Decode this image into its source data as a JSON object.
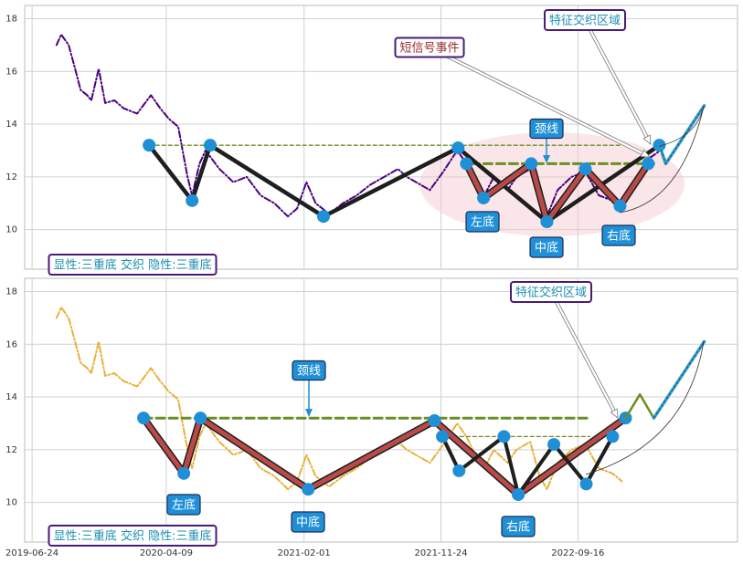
{
  "chart_data": [
    {
      "type": "line",
      "xlim": [
        "2019-06-08",
        "2023-08-27"
      ],
      "ylim": [
        8.5,
        18.5
      ],
      "yticks": [
        10,
        12,
        14,
        16,
        18
      ],
      "grid": true,
      "series": [
        {
          "color": "#4b0082",
          "line_style": "dashdot",
          "line_width": 2,
          "x": [
            "2019-08-16",
            "2019-08-26",
            "2019-09-11",
            "2019-09-25",
            "2019-10-07",
            "2019-10-21",
            "2019-10-30",
            "2019-11-15",
            "2019-11-29",
            "2019-12-19",
            "2020-01-08",
            "2020-02-06",
            "2020-03-07",
            "2020-03-27",
            "2020-04-15",
            "2020-05-05",
            "2020-05-25",
            "2020-06-04",
            "2020-06-20",
            "2020-07-03",
            "2020-08-02",
            "2020-09-01",
            "2020-09-30",
            "2020-10-30",
            "2020-11-29",
            "2020-12-28",
            "2021-01-17",
            "2021-02-06",
            "2021-02-26",
            "2021-03-27",
            "2021-04-26",
            "2021-05-26",
            "2021-06-24",
            "2021-07-24",
            "2021-08-23",
            "2021-09-11",
            "2021-10-01",
            "2021-10-31",
            "2021-11-29",
            "2021-12-29",
            "2022-01-18",
            "2022-02-06",
            "2022-02-26",
            "2022-03-18",
            "2022-04-17",
            "2022-05-06",
            "2022-06-05",
            "2022-06-25",
            "2022-07-11",
            "2022-08-03",
            "2022-09-02",
            "2022-10-02",
            "2022-10-31",
            "2022-11-30",
            "2022-12-20",
            "2023-01-18",
            "2023-02-17",
            "2023-03-13"
          ],
          "values": [
            17.0,
            17.4,
            17.0,
            16.1,
            15.3,
            15.1,
            14.9,
            16.1,
            14.8,
            14.9,
            14.6,
            14.4,
            15.1,
            14.6,
            14.2,
            13.9,
            12.0,
            11.3,
            12.5,
            13.0,
            12.3,
            11.8,
            12.0,
            11.3,
            11.0,
            10.5,
            10.8,
            11.8,
            11.0,
            10.6,
            11.0,
            11.3,
            11.7,
            12.0,
            12.3,
            12.0,
            11.8,
            11.5,
            12.2,
            13.0,
            12.5,
            11.8,
            11.3,
            12.0,
            11.5,
            12.0,
            12.3,
            11.0,
            10.5,
            11.5,
            12.0,
            12.2,
            11.3,
            11.1,
            10.8,
            11.8,
            12.7,
            13.0
          ]
        },
        {
          "color": "#6b8e23",
          "line_style": "dashed",
          "line_width": 1.3,
          "x": [
            "2020-03-03",
            "2022-12-20"
          ],
          "values": [
            13.2,
            13.2
          ]
        },
        {
          "color": "#6b8e23",
          "line_style": "dashed",
          "line_width": 3,
          "x": [
            "2022-01-28",
            "2023-02-27"
          ],
          "values": [
            12.5,
            12.5
          ]
        },
        {
          "color": "#1e1e1e",
          "line_width": 4.5,
          "marker": "#1f8fd6",
          "x": [
            "2020-03-03",
            "2020-06-04",
            "2020-07-13",
            "2021-03-15",
            "2021-12-31",
            "2022-07-11",
            "2023-03-11"
          ],
          "values": [
            13.2,
            11.1,
            13.2,
            10.5,
            13.1,
            10.3,
            13.2
          ]
        },
        {
          "color": "#b94a48",
          "edge": "#1e1e1e",
          "line_width": 5,
          "marker": "#1f8fd6",
          "x": [
            "2022-01-18",
            "2022-02-24",
            "2022-06-07",
            "2022-07-11",
            "2022-10-02",
            "2022-12-16",
            "2023-02-15"
          ],
          "values": [
            12.5,
            11.2,
            12.5,
            10.3,
            12.3,
            10.9,
            12.5
          ]
        },
        {
          "color": "#2aa0d8",
          "edge": "#444",
          "line_width": 3.5,
          "line_style": "inner-dash",
          "x": [
            "2023-03-11",
            "2023-03-25",
            "2023-06-16"
          ],
          "values": [
            13.2,
            12.5,
            14.7
          ]
        }
      ],
      "annotations": [
        "短信号事件",
        "特征交织区域",
        "颈线",
        "左底",
        "中底",
        "右底",
        "显性:三重底 交织 隐性:三重底"
      ]
    },
    {
      "type": "line",
      "xlim": [
        "2019-06-08",
        "2023-08-27"
      ],
      "ylim": [
        8.5,
        18.5
      ],
      "yticks": [
        10,
        12,
        14,
        16,
        18
      ],
      "grid": true,
      "xticks": [
        "2019-06-24",
        "2020-04-09",
        "2021-02-01",
        "2021-11-24",
        "2022-09-16"
      ],
      "series": [
        {
          "color": "#e8b13a",
          "line_style": "dashdot",
          "line_width": 2,
          "x": [
            "2019-08-16",
            "2019-08-26",
            "2019-09-11",
            "2019-09-25",
            "2019-10-07",
            "2019-10-21",
            "2019-10-30",
            "2019-11-15",
            "2019-11-29",
            "2019-12-19",
            "2020-01-08",
            "2020-02-06",
            "2020-03-07",
            "2020-03-27",
            "2020-04-15",
            "2020-05-05",
            "2020-05-25",
            "2020-06-04",
            "2020-06-20",
            "2020-07-03",
            "2020-08-02",
            "2020-09-01",
            "2020-09-30",
            "2020-10-30",
            "2020-11-29",
            "2020-12-28",
            "2021-01-17",
            "2021-02-06",
            "2021-02-26",
            "2021-03-27",
            "2021-04-26",
            "2021-05-26",
            "2021-06-24",
            "2021-07-24",
            "2021-08-23",
            "2021-09-11",
            "2021-10-01",
            "2021-10-31",
            "2021-11-29",
            "2021-12-29",
            "2022-01-18",
            "2022-02-06",
            "2022-02-26",
            "2022-03-18",
            "2022-04-17",
            "2022-05-06",
            "2022-06-05",
            "2022-06-25",
            "2022-07-11",
            "2022-08-03",
            "2022-09-02",
            "2022-10-02",
            "2022-10-31",
            "2022-11-30",
            "2022-12-20"
          ],
          "values": [
            17.0,
            17.4,
            17.0,
            16.1,
            15.3,
            15.1,
            14.9,
            16.1,
            14.8,
            14.9,
            14.6,
            14.4,
            15.1,
            14.6,
            14.2,
            13.9,
            12.0,
            11.3,
            12.5,
            13.0,
            12.3,
            11.8,
            12.0,
            11.3,
            11.0,
            10.5,
            10.8,
            11.8,
            11.0,
            10.6,
            11.0,
            11.3,
            11.7,
            12.0,
            12.3,
            12.0,
            11.8,
            11.5,
            12.2,
            13.0,
            12.5,
            11.8,
            11.3,
            12.0,
            11.5,
            12.0,
            12.3,
            11.0,
            10.5,
            11.5,
            12.0,
            12.2,
            11.3,
            11.1,
            10.8
          ]
        },
        {
          "color": "#6b8e23",
          "line_style": "dashed",
          "line_width": 3,
          "x": [
            "2020-02-20",
            "2022-10-12"
          ],
          "values": [
            13.2,
            13.2
          ]
        },
        {
          "color": "#6b8e23",
          "line_style": "dashed",
          "line_width": 1.3,
          "x": [
            "2022-01-04",
            "2022-10-12"
          ],
          "values": [
            12.5,
            12.5
          ]
        },
        {
          "color": "#b94a48",
          "edge": "#1e1e1e",
          "line_width": 5,
          "marker": "#1f8fd6",
          "x": [
            "2020-02-20",
            "2020-05-17",
            "2020-06-22",
            "2021-02-10",
            "2021-11-10",
            "2022-05-10",
            "2022-12-28"
          ],
          "values": [
            13.2,
            11.1,
            13.2,
            10.5,
            13.1,
            10.3,
            13.2
          ]
        },
        {
          "color": "#1e1e1e",
          "line_width": 4,
          "marker": "#1f8fd6",
          "x": [
            "2021-11-27",
            "2022-01-02",
            "2022-04-09",
            "2022-05-10",
            "2022-07-26",
            "2022-10-04",
            "2022-11-30"
          ],
          "values": [
            12.5,
            11.2,
            12.5,
            10.3,
            12.2,
            10.7,
            12.5
          ]
        },
        {
          "color": "#6b8e23",
          "line_width": 2.5,
          "x": [
            "2022-12-28",
            "2023-01-28",
            "2023-02-27"
          ],
          "values": [
            13.2,
            14.1,
            13.2
          ]
        },
        {
          "color": "#2aa0d8",
          "edge": "#444",
          "line_width": 3.5,
          "line_style": "inner-dash",
          "x": [
            "2023-02-27",
            "2023-06-16"
          ],
          "values": [
            13.2,
            16.1
          ]
        }
      ],
      "annotations": [
        "特征交织区域",
        "颈线",
        "左底",
        "中底",
        "右底",
        "显性:三重底 交织 隐性:三重底"
      ]
    }
  ]
}
